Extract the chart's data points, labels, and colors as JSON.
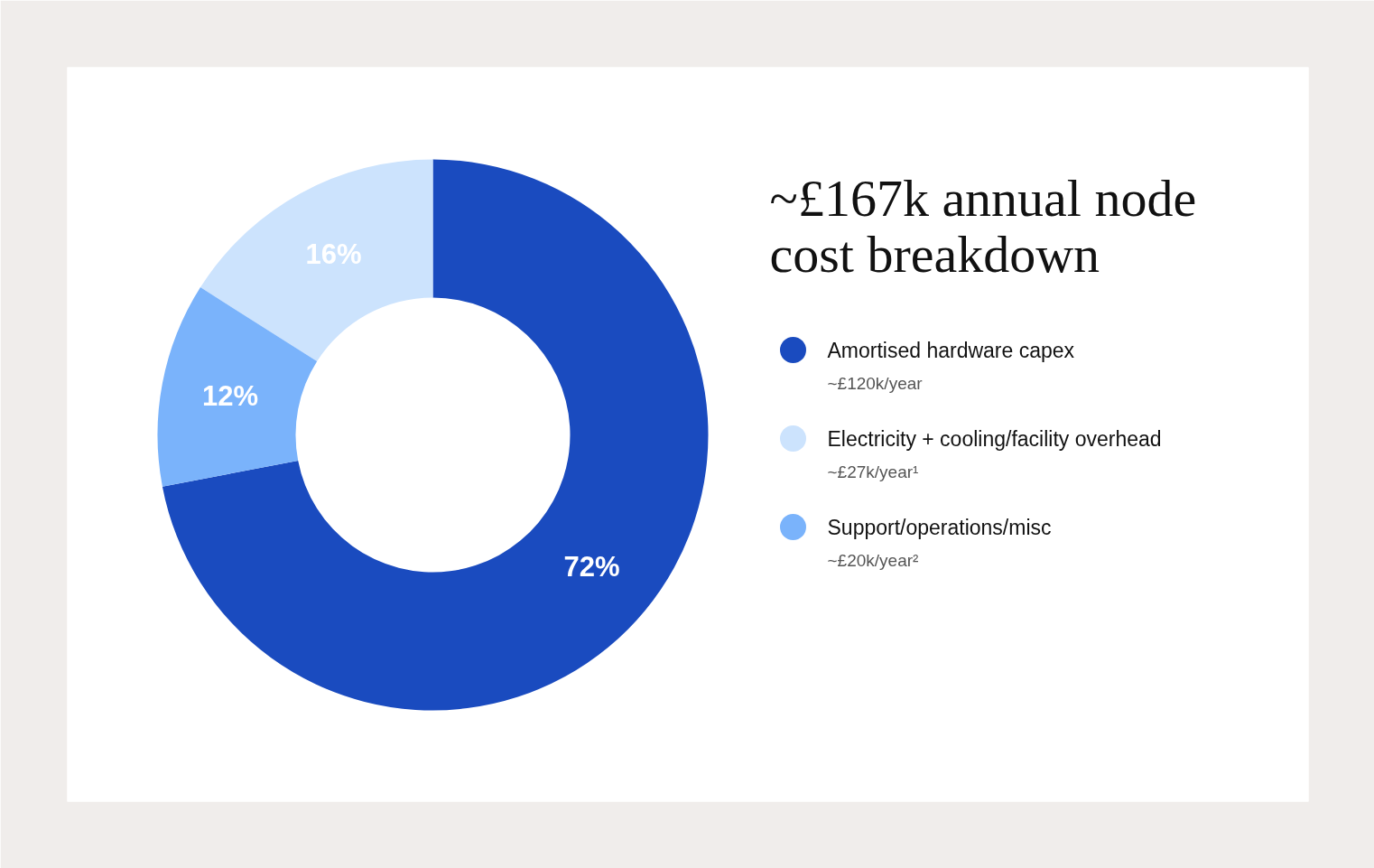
{
  "chart_data": {
    "type": "donut",
    "title": "~£167k annual node cost breakdown",
    "categories": [
      "Amortised hardware capex",
      "Electricity + cooling/facility overhead",
      "Support/operations/misc"
    ],
    "values": [
      72,
      16,
      12
    ],
    "colors": [
      "#1a4bbf",
      "#cce3fd",
      "#7ab3fb"
    ],
    "value_labels": [
      "72%",
      "16%",
      "12%"
    ],
    "annotations": [
      "~£120k/year",
      "~£27k/year¹",
      "~£20k/year²"
    ],
    "legend": "right"
  }
}
